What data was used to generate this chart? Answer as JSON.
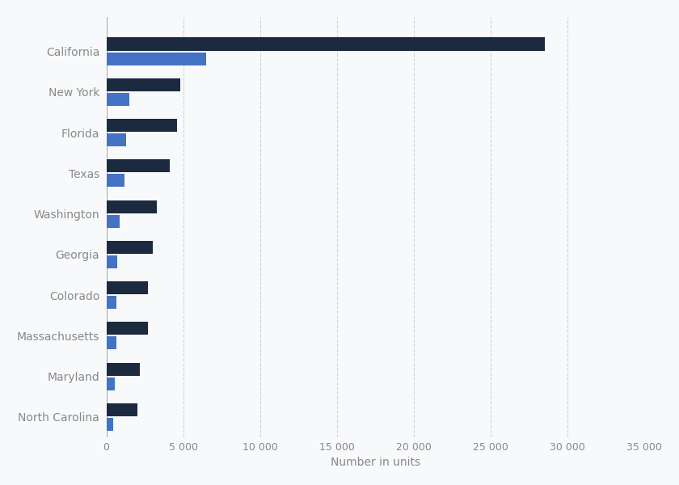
{
  "states": [
    "California",
    "New York",
    "Florida",
    "Texas",
    "Washington",
    "Georgia",
    "Colorado",
    "Massachusetts",
    "Maryland",
    "North Carolina"
  ],
  "dark_values": [
    28500,
    4800,
    4600,
    4100,
    3300,
    3000,
    2700,
    2700,
    2200,
    2000
  ],
  "light_values": [
    6500,
    1500,
    1300,
    1200,
    850,
    700,
    650,
    650,
    550,
    450
  ],
  "dark_color": "#1b2a3e",
  "light_color": "#4472c4",
  "background_color": "#f8f9fb",
  "xlabel": "Number in units",
  "xlim": [
    0,
    35000
  ],
  "xticks": [
    0,
    5000,
    10000,
    15000,
    20000,
    25000,
    30000,
    35000
  ],
  "xtick_labels": [
    "0",
    "5 000",
    "10 000",
    "15 000",
    "20 000",
    "25 000",
    "30 000",
    "35 000"
  ],
  "bar_height": 0.32,
  "bar_gap": 0.04,
  "grid_color": "#d0d3d8",
  "label_color": "#888888",
  "tick_fontsize": 9,
  "label_fontsize": 10
}
